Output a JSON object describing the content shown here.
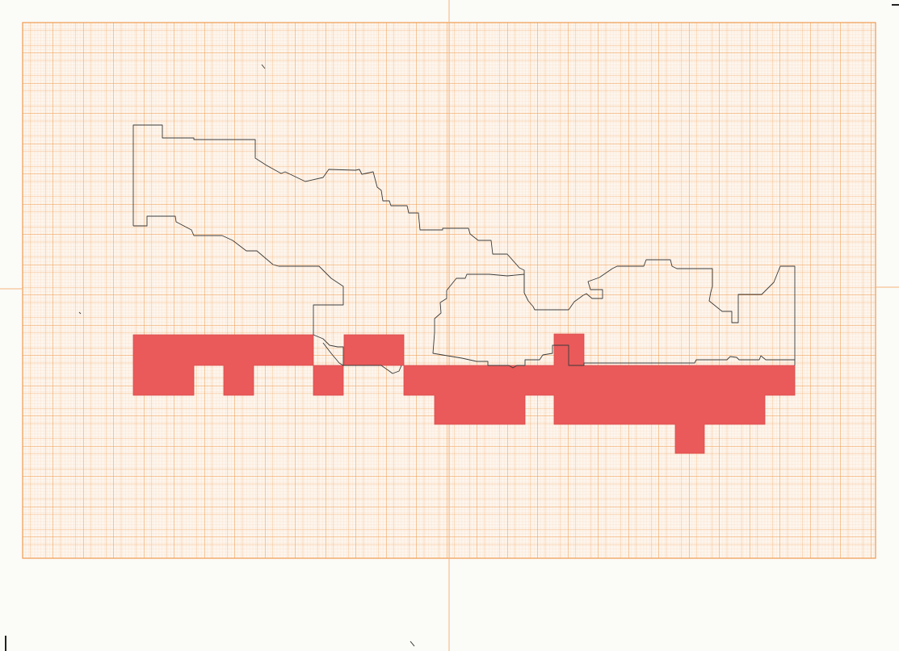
{
  "sheet": {
    "paper_color": "#fbfbf8",
    "grid_color": "#f3a25a",
    "grid_bg_color": "#fdf6ee",
    "fold_line_color": "#f4b37a",
    "outline_color": "#3a3a3a",
    "fill_color": "#ea5a5a",
    "fill_stroke_color": "#d94a4a"
  }
}
